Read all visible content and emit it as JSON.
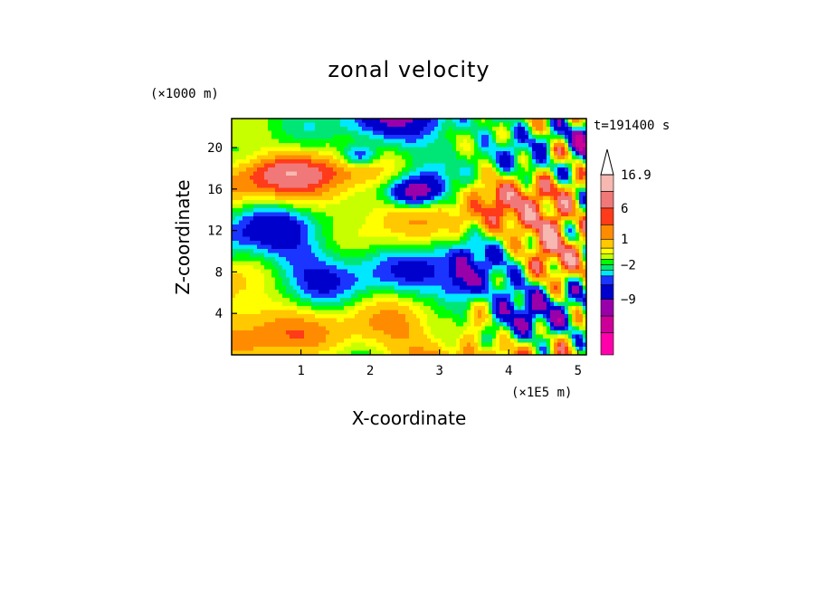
{
  "chart_data": {
    "type": "heatmap",
    "title": "zonal velocity",
    "xlabel": "X-coordinate",
    "ylabel": "Z-coordinate",
    "x_unit": "(×1E5 m)",
    "y_unit": "(×1000 m)",
    "time_label": "t=191400 s",
    "xlim": [
      0,
      5.12
    ],
    "ylim": [
      0,
      22.8
    ],
    "x_ticks": [
      {
        "value": 1,
        "label": "1"
      },
      {
        "value": 2,
        "label": "2"
      },
      {
        "value": 3,
        "label": "3"
      },
      {
        "value": 4,
        "label": "4"
      },
      {
        "value": 5,
        "label": "5"
      }
    ],
    "y_ticks": [
      {
        "value": 4,
        "label": "4"
      },
      {
        "value": 8,
        "label": "8"
      },
      {
        "value": 12,
        "label": "12"
      },
      {
        "value": 16,
        "label": "16"
      },
      {
        "value": 20,
        "label": "20"
      }
    ],
    "colorbar": {
      "levels": [
        {
          "color": "#ff00aa"
        },
        {
          "color": "#cc0099"
        },
        {
          "color": "#9900aa"
        },
        {
          "color": "#0000cc"
        },
        {
          "color": "#1a35ff"
        },
        {
          "color": "#00e8ff"
        },
        {
          "color": "#00e676"
        },
        {
          "color": "#00ff00"
        },
        {
          "color": "#c8ff00"
        },
        {
          "color": "#ffff00"
        },
        {
          "color": "#ffc800"
        },
        {
          "color": "#ff8c00"
        },
        {
          "color": "#ff3b1a"
        },
        {
          "color": "#f07878"
        },
        {
          "color": "#f6b8b0"
        }
      ],
      "labels": [
        {
          "value": "16.9",
          "index": 14
        },
        {
          "value": "6",
          "index": 12
        },
        {
          "value": "1",
          "index": 10
        },
        {
          "value": "−2",
          "index": 6
        },
        {
          "value": "−9",
          "index": 2
        }
      ]
    }
  }
}
